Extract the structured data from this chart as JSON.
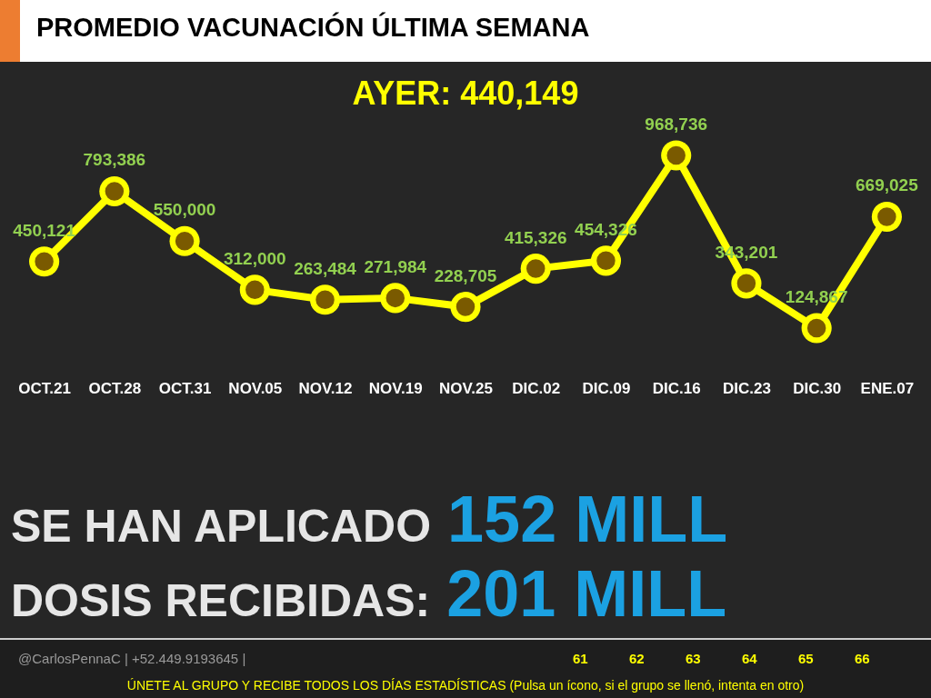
{
  "chart_data": {
    "type": "line",
    "title": "PROMEDIO VACUNACIÓN ÚLTIMA SEMANA",
    "categories": [
      "OCT.21",
      "OCT.28",
      "OCT.31",
      "NOV.05",
      "NOV.12",
      "NOV.19",
      "NOV.25",
      "DIC.02",
      "DIC.09",
      "DIC.16",
      "DIC.23",
      "DIC.30",
      "ENE.07"
    ],
    "series": [
      {
        "color": "#ffff00",
        "values": [
          450121,
          793386,
          550000,
          312000,
          263484,
          271984,
          228705,
          415326,
          454326,
          968736,
          343201,
          124867,
          669025
        ],
        "value_labels": [
          "450,121",
          "793,386",
          "550,000",
          "312,000",
          "263,484",
          "271,984",
          "228,705",
          "415,326",
          "454,326",
          "968,736",
          "343,201",
          "124,867",
          "669,025"
        ]
      }
    ],
    "marker": "circle",
    "line_style": "solid",
    "annotations": [
      "AYER: 440,149",
      "SE HAN APLICADO",
      "152 MILL",
      "DOSIS RECIBIDAS:",
      "201 MILL",
      "@CarlosPennaC | +52.449.9193645 |",
      "61",
      "62",
      "63",
      "64",
      "65",
      "66",
      "ÚNETE AL GRUPO Y RECIBE TODOS LOS DÍAS ESTADÍSTICAS (Pulsa un ícono, si el grupo se llenó, intenta en otro)"
    ]
  }
}
